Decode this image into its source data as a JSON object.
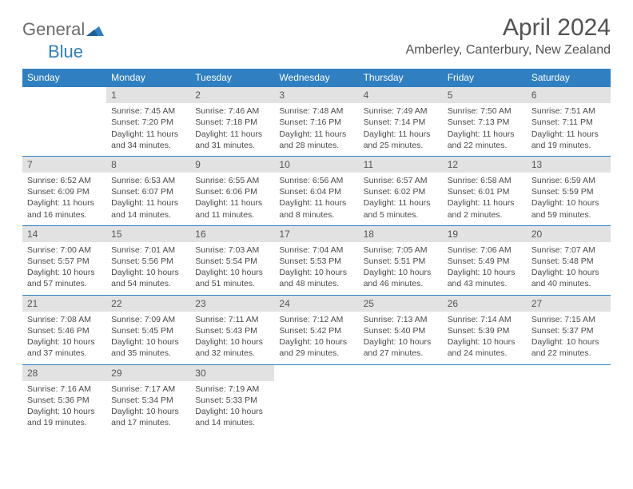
{
  "logo": {
    "part1": "General",
    "part2": "Blue"
  },
  "title": "April 2024",
  "location": "Amberley, Canterbury, New Zealand",
  "colors": {
    "header_bg": "#2f7fc1",
    "header_text": "#ffffff",
    "daynum_bg": "#e2e2e2",
    "border": "#2f7fc1",
    "text": "#4a4a4a"
  },
  "weekdays": [
    "Sunday",
    "Monday",
    "Tuesday",
    "Wednesday",
    "Thursday",
    "Friday",
    "Saturday"
  ],
  "weeks": [
    [
      null,
      {
        "n": "1",
        "sr": "Sunrise: 7:45 AM",
        "ss": "Sunset: 7:20 PM",
        "d1": "Daylight: 11 hours",
        "d2": "and 34 minutes."
      },
      {
        "n": "2",
        "sr": "Sunrise: 7:46 AM",
        "ss": "Sunset: 7:18 PM",
        "d1": "Daylight: 11 hours",
        "d2": "and 31 minutes."
      },
      {
        "n": "3",
        "sr": "Sunrise: 7:48 AM",
        "ss": "Sunset: 7:16 PM",
        "d1": "Daylight: 11 hours",
        "d2": "and 28 minutes."
      },
      {
        "n": "4",
        "sr": "Sunrise: 7:49 AM",
        "ss": "Sunset: 7:14 PM",
        "d1": "Daylight: 11 hours",
        "d2": "and 25 minutes."
      },
      {
        "n": "5",
        "sr": "Sunrise: 7:50 AM",
        "ss": "Sunset: 7:13 PM",
        "d1": "Daylight: 11 hours",
        "d2": "and 22 minutes."
      },
      {
        "n": "6",
        "sr": "Sunrise: 7:51 AM",
        "ss": "Sunset: 7:11 PM",
        "d1": "Daylight: 11 hours",
        "d2": "and 19 minutes."
      }
    ],
    [
      {
        "n": "7",
        "sr": "Sunrise: 6:52 AM",
        "ss": "Sunset: 6:09 PM",
        "d1": "Daylight: 11 hours",
        "d2": "and 16 minutes."
      },
      {
        "n": "8",
        "sr": "Sunrise: 6:53 AM",
        "ss": "Sunset: 6:07 PM",
        "d1": "Daylight: 11 hours",
        "d2": "and 14 minutes."
      },
      {
        "n": "9",
        "sr": "Sunrise: 6:55 AM",
        "ss": "Sunset: 6:06 PM",
        "d1": "Daylight: 11 hours",
        "d2": "and 11 minutes."
      },
      {
        "n": "10",
        "sr": "Sunrise: 6:56 AM",
        "ss": "Sunset: 6:04 PM",
        "d1": "Daylight: 11 hours",
        "d2": "and 8 minutes."
      },
      {
        "n": "11",
        "sr": "Sunrise: 6:57 AM",
        "ss": "Sunset: 6:02 PM",
        "d1": "Daylight: 11 hours",
        "d2": "and 5 minutes."
      },
      {
        "n": "12",
        "sr": "Sunrise: 6:58 AM",
        "ss": "Sunset: 6:01 PM",
        "d1": "Daylight: 11 hours",
        "d2": "and 2 minutes."
      },
      {
        "n": "13",
        "sr": "Sunrise: 6:59 AM",
        "ss": "Sunset: 5:59 PM",
        "d1": "Daylight: 10 hours",
        "d2": "and 59 minutes."
      }
    ],
    [
      {
        "n": "14",
        "sr": "Sunrise: 7:00 AM",
        "ss": "Sunset: 5:57 PM",
        "d1": "Daylight: 10 hours",
        "d2": "and 57 minutes."
      },
      {
        "n": "15",
        "sr": "Sunrise: 7:01 AM",
        "ss": "Sunset: 5:56 PM",
        "d1": "Daylight: 10 hours",
        "d2": "and 54 minutes."
      },
      {
        "n": "16",
        "sr": "Sunrise: 7:03 AM",
        "ss": "Sunset: 5:54 PM",
        "d1": "Daylight: 10 hours",
        "d2": "and 51 minutes."
      },
      {
        "n": "17",
        "sr": "Sunrise: 7:04 AM",
        "ss": "Sunset: 5:53 PM",
        "d1": "Daylight: 10 hours",
        "d2": "and 48 minutes."
      },
      {
        "n": "18",
        "sr": "Sunrise: 7:05 AM",
        "ss": "Sunset: 5:51 PM",
        "d1": "Daylight: 10 hours",
        "d2": "and 46 minutes."
      },
      {
        "n": "19",
        "sr": "Sunrise: 7:06 AM",
        "ss": "Sunset: 5:49 PM",
        "d1": "Daylight: 10 hours",
        "d2": "and 43 minutes."
      },
      {
        "n": "20",
        "sr": "Sunrise: 7:07 AM",
        "ss": "Sunset: 5:48 PM",
        "d1": "Daylight: 10 hours",
        "d2": "and 40 minutes."
      }
    ],
    [
      {
        "n": "21",
        "sr": "Sunrise: 7:08 AM",
        "ss": "Sunset: 5:46 PM",
        "d1": "Daylight: 10 hours",
        "d2": "and 37 minutes."
      },
      {
        "n": "22",
        "sr": "Sunrise: 7:09 AM",
        "ss": "Sunset: 5:45 PM",
        "d1": "Daylight: 10 hours",
        "d2": "and 35 minutes."
      },
      {
        "n": "23",
        "sr": "Sunrise: 7:11 AM",
        "ss": "Sunset: 5:43 PM",
        "d1": "Daylight: 10 hours",
        "d2": "and 32 minutes."
      },
      {
        "n": "24",
        "sr": "Sunrise: 7:12 AM",
        "ss": "Sunset: 5:42 PM",
        "d1": "Daylight: 10 hours",
        "d2": "and 29 minutes."
      },
      {
        "n": "25",
        "sr": "Sunrise: 7:13 AM",
        "ss": "Sunset: 5:40 PM",
        "d1": "Daylight: 10 hours",
        "d2": "and 27 minutes."
      },
      {
        "n": "26",
        "sr": "Sunrise: 7:14 AM",
        "ss": "Sunset: 5:39 PM",
        "d1": "Daylight: 10 hours",
        "d2": "and 24 minutes."
      },
      {
        "n": "27",
        "sr": "Sunrise: 7:15 AM",
        "ss": "Sunset: 5:37 PM",
        "d1": "Daylight: 10 hours",
        "d2": "and 22 minutes."
      }
    ],
    [
      {
        "n": "28",
        "sr": "Sunrise: 7:16 AM",
        "ss": "Sunset: 5:36 PM",
        "d1": "Daylight: 10 hours",
        "d2": "and 19 minutes."
      },
      {
        "n": "29",
        "sr": "Sunrise: 7:17 AM",
        "ss": "Sunset: 5:34 PM",
        "d1": "Daylight: 10 hours",
        "d2": "and 17 minutes."
      },
      {
        "n": "30",
        "sr": "Sunrise: 7:19 AM",
        "ss": "Sunset: 5:33 PM",
        "d1": "Daylight: 10 hours",
        "d2": "and 14 minutes."
      },
      null,
      null,
      null,
      null
    ]
  ]
}
